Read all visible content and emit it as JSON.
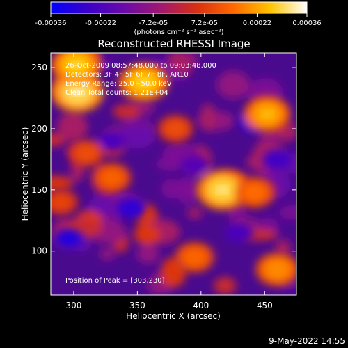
{
  "colorbar": {
    "ticks": [
      "-0.00036",
      "-0.00022",
      "-7.2e-05",
      "7.2e-05",
      "0.00022",
      "0.00036"
    ],
    "unit": "(photons cm⁻² s⁻¹ asec⁻²)",
    "range": [
      -0.00036,
      0.00036
    ],
    "colormap": [
      "#0000ff",
      "#3a00c8",
      "#6a0aa8",
      "#a01870",
      "#d83010",
      "#ff6a00",
      "#ffc400",
      "#ffffff"
    ]
  },
  "chart_data": {
    "type": "heatmap",
    "title": "Reconstructed RHESSI Image",
    "xlabel": "Heliocentric X (arcsec)",
    "ylabel": "Heliocentric Y (arcsec)",
    "xlim": [
      282,
      475
    ],
    "ylim": [
      64,
      262
    ],
    "xticks": [
      300,
      350,
      400,
      450
    ],
    "yticks": [
      100,
      150,
      200,
      250
    ],
    "hotspots": [
      {
        "x": 303,
        "y": 230,
        "value": 0.00034
      },
      {
        "x": 302,
        "y": 252,
        "value": 0.0003
      },
      {
        "x": 355,
        "y": 238,
        "value": 0.0003
      },
      {
        "x": 417,
        "y": 150,
        "value": 0.00033
      },
      {
        "x": 452,
        "y": 212,
        "value": 0.00026
      },
      {
        "x": 442,
        "y": 148,
        "value": 0.00018
      },
      {
        "x": 460,
        "y": 85,
        "value": 0.00022
      },
      {
        "x": 330,
        "y": 160,
        "value": 0.00016
      },
      {
        "x": 395,
        "y": 95,
        "value": 0.00017
      },
      {
        "x": 380,
        "y": 200,
        "value": 0.00012
      },
      {
        "x": 310,
        "y": 180,
        "value": 0.00012
      },
      {
        "x": 290,
        "y": 140,
        "value": 0.0001
      }
    ],
    "coldspots": [
      {
        "x": 296,
        "y": 110,
        "value": -0.0003
      },
      {
        "x": 345,
        "y": 135,
        "value": -0.00028
      },
      {
        "x": 330,
        "y": 190,
        "value": -0.00022
      },
      {
        "x": 440,
        "y": 205,
        "value": -0.00026
      },
      {
        "x": 460,
        "y": 175,
        "value": -0.00024
      },
      {
        "x": 395,
        "y": 170,
        "value": -0.0002
      },
      {
        "x": 430,
        "y": 115,
        "value": -0.00022
      }
    ],
    "annotations": [
      "26-Oct-2009 08:57:48.000 to 09:03:48.000",
      "Detectors: 3F 4F 5F 6F 7F 8F, AR10",
      "Energy Range: 25.0 - 50.0 keV",
      "Clean     Total counts: 1.21E+04"
    ],
    "peak_text": "Position of Peak = [303,230]"
  },
  "footer": {
    "date": "9-May-2022 14:55"
  }
}
